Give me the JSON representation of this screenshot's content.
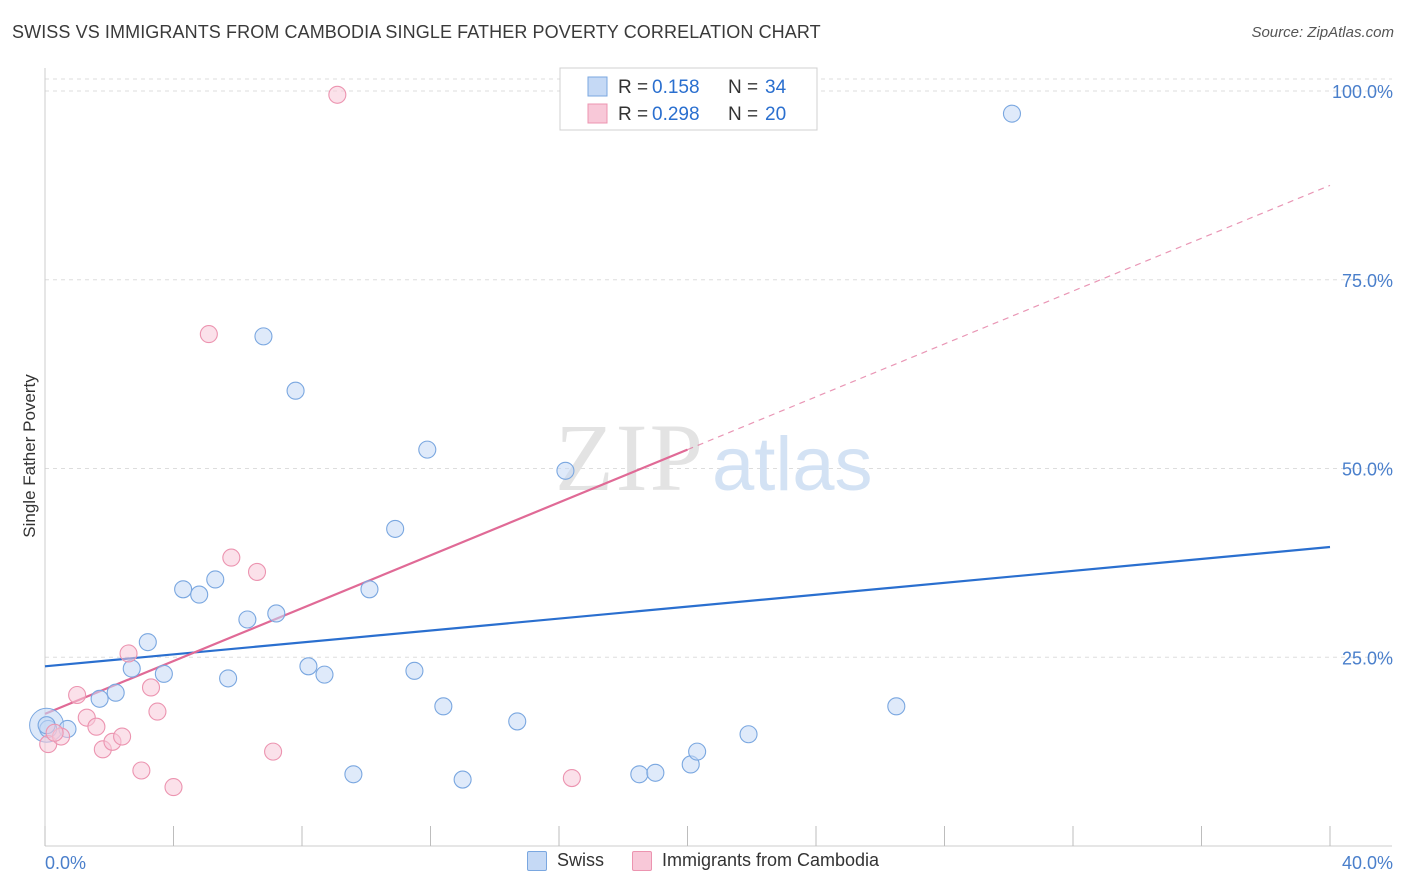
{
  "header": {
    "title": "SWISS VS IMMIGRANTS FROM CAMBODIA SINGLE FATHER POVERTY CORRELATION CHART",
    "source": "Source: ZipAtlas.com"
  },
  "watermark": {
    "zip": "ZIP",
    "atlas": "atlas"
  },
  "colors": {
    "swiss_fill": "#c5d9f5",
    "swiss_stroke": "#7aa7e0",
    "swiss_line": "#2a6fcf",
    "cambodia_fill": "#f8c8d8",
    "cambodia_stroke": "#ec94b0",
    "cambodia_line": "#e06a96",
    "axis_text": "#4a7fcb",
    "grid": "#dddddd"
  },
  "legend": {
    "rows": [
      {
        "r_label": "R =",
        "r_value": "0.158",
        "n_label": "N =",
        "n_value": "34"
      },
      {
        "r_label": "R =",
        "r_value": "0.298",
        "n_label": "N =",
        "n_value": "20"
      }
    ]
  },
  "chart_data": {
    "type": "scatter",
    "title": "SWISS VS IMMIGRANTS FROM CAMBODIA SINGLE FATHER POVERTY CORRELATION CHART",
    "xlabel": "",
    "ylabel": "Single Father Poverty",
    "xlim": [
      0,
      40
    ],
    "ylim": [
      0,
      100
    ],
    "x_tick_labels": [
      "0.0%",
      "40.0%"
    ],
    "y_tick_labels": [
      "25.0%",
      "50.0%",
      "75.0%",
      "100.0%"
    ],
    "y_ticks": [
      25,
      50,
      75,
      100
    ],
    "grid": true,
    "series": [
      {
        "name": "Swiss",
        "r": 0.158,
        "n": 34,
        "trend": {
          "x0": 0,
          "y0": 23.8,
          "x1": 40,
          "y1": 39.6
        },
        "points": [
          [
            0.1,
            15.5
          ],
          [
            0.7,
            15.5
          ],
          [
            1.7,
            19.5
          ],
          [
            2.2,
            20.3
          ],
          [
            2.7,
            23.5
          ],
          [
            3.2,
            27.0
          ],
          [
            3.7,
            22.8
          ],
          [
            4.3,
            34.0
          ],
          [
            4.8,
            33.3
          ],
          [
            5.3,
            35.3
          ],
          [
            5.7,
            22.2
          ],
          [
            6.3,
            30.0
          ],
          [
            6.8,
            67.5
          ],
          [
            7.2,
            30.8
          ],
          [
            7.8,
            60.3
          ],
          [
            8.2,
            23.8
          ],
          [
            8.7,
            22.7
          ],
          [
            9.6,
            9.5
          ],
          [
            10.1,
            34.0
          ],
          [
            10.9,
            42.0
          ],
          [
            11.5,
            23.2
          ],
          [
            11.9,
            52.5
          ],
          [
            12.4,
            18.5
          ],
          [
            13.0,
            8.8
          ],
          [
            14.7,
            16.5
          ],
          [
            16.2,
            49.7
          ],
          [
            18.5,
            9.5
          ],
          [
            19.0,
            9.7
          ],
          [
            20.1,
            10.8
          ],
          [
            20.3,
            12.5
          ],
          [
            21.9,
            14.8
          ],
          [
            26.5,
            18.5
          ],
          [
            30.1,
            97.0
          ],
          [
            0.05,
            16.0
          ]
        ]
      },
      {
        "name": "Immigrants from Cambodia",
        "r": 0.298,
        "n": 20,
        "trend": {
          "x0": 0,
          "y0": 17.5,
          "x1": 20,
          "y1": 52.5,
          "dash_to_x": 40,
          "dash_to_y": 87.5
        },
        "points": [
          [
            0.1,
            13.5
          ],
          [
            0.5,
            14.5
          ],
          [
            1.0,
            20.0
          ],
          [
            1.3,
            17.0
          ],
          [
            1.6,
            15.8
          ],
          [
            1.8,
            12.8
          ],
          [
            2.1,
            13.8
          ],
          [
            2.4,
            14.5
          ],
          [
            2.6,
            25.5
          ],
          [
            3.0,
            10.0
          ],
          [
            3.3,
            21.0
          ],
          [
            3.5,
            17.8
          ],
          [
            4.0,
            7.8
          ],
          [
            5.1,
            67.8
          ],
          [
            5.8,
            38.2
          ],
          [
            6.6,
            36.3
          ],
          [
            7.1,
            12.5
          ],
          [
            9.1,
            99.5
          ],
          [
            16.4,
            9.0
          ],
          [
            0.3,
            15.0
          ]
        ]
      }
    ]
  },
  "bottom_legend": [
    {
      "label": "Swiss"
    },
    {
      "label": "Immigrants from Cambodia"
    }
  ]
}
